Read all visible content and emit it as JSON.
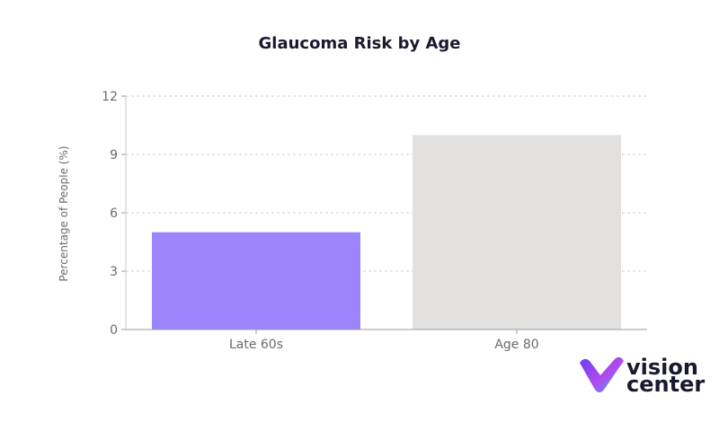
{
  "chart_data": {
    "type": "bar",
    "title": "Glaucoma Risk by Age",
    "xlabel": "",
    "ylabel": "Percentage of People (%)",
    "categories": [
      "Late 60s",
      "Age 80"
    ],
    "values": [
      5,
      10
    ],
    "colors": [
      "#9b84fc",
      "#e2e1df"
    ],
    "ylim": [
      0,
      12
    ],
    "yticks": [
      0,
      3,
      6,
      9,
      12
    ],
    "grid": true,
    "legend": "none"
  },
  "brand": {
    "line1": "vision",
    "line2": "center",
    "logo_icon": "vision-center-v-logo-icon",
    "colors": [
      "#6a3cf0",
      "#b04bf0",
      "#38a8f4"
    ]
  }
}
